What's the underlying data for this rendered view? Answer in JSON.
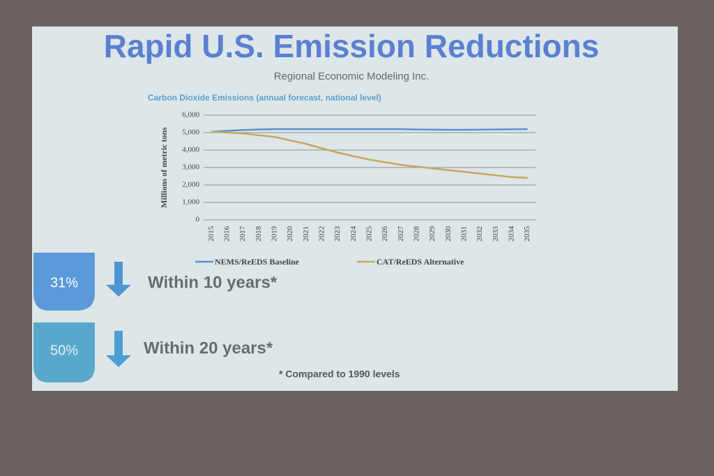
{
  "slide": {
    "title": "Rapid U.S. Emission Reductions",
    "subtitle": "Regional Economic Modeling Inc.",
    "items": [
      {
        "badge": "31%",
        "text": "Within 10 years*"
      },
      {
        "badge": "50%",
        "text": "Within 20 years*"
      }
    ],
    "footnote": "* Compared to 1990 levels"
  },
  "chart_data": {
    "type": "line",
    "title": "Carbon Dioxide Emissions (annual forecast, national level)",
    "y_label": "Millions of metric tons",
    "categories": [
      "2015",
      "2016",
      "2017",
      "2018",
      "2019",
      "2020",
      "2021",
      "2022",
      "2023",
      "2024",
      "2025",
      "2026",
      "2027",
      "2028",
      "2029",
      "2030",
      "2031",
      "2032",
      "2033",
      "2034",
      "2035"
    ],
    "series": [
      {
        "name": "NEMS/ReEDS Baseline",
        "color": "#5b8fcf",
        "values": [
          5050,
          5100,
          5150,
          5180,
          5200,
          5200,
          5200,
          5200,
          5200,
          5200,
          5200,
          5200,
          5200,
          5180,
          5170,
          5160,
          5160,
          5170,
          5180,
          5190,
          5200
        ]
      },
      {
        "name": "CAT/ReEDS Alternative",
        "color": "#c9a65a",
        "values": [
          5050,
          5000,
          4950,
          4850,
          4750,
          4550,
          4350,
          4100,
          3850,
          3650,
          3450,
          3300,
          3150,
          3050,
          2950,
          2850,
          2750,
          2650,
          2550,
          2450,
          2400
        ]
      }
    ],
    "ylim": [
      0,
      6000
    ],
    "yticks": [
      {
        "value": 0,
        "label": "0"
      },
      {
        "value": 1000,
        "label": "1,000"
      },
      {
        "value": 2000,
        "label": "2,000"
      },
      {
        "value": 3000,
        "label": "3,000"
      },
      {
        "value": 4000,
        "label": "4,000"
      },
      {
        "value": 5000,
        "label": "5,000"
      },
      {
        "value": 6000,
        "label": "6,000"
      }
    ],
    "grid": true
  }
}
